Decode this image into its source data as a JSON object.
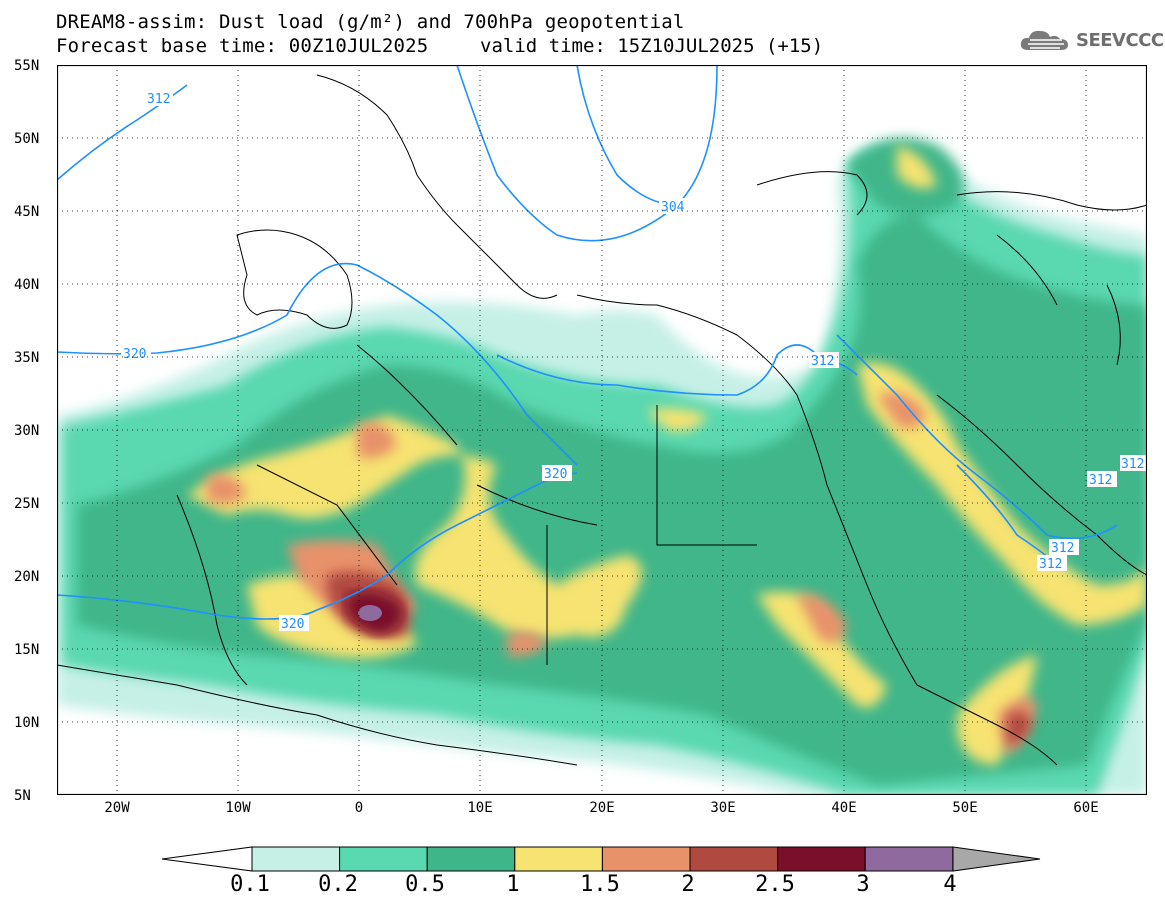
{
  "title": {
    "line1": "DREAM8-assim: Dust load (g/m²) and 700hPa geopotential",
    "line2": "Forecast base time: 00Z10JUL2025",
    "valid": "valid time: 15Z10JUL2025 (+15)"
  },
  "logo": {
    "text": "SEEVCCC",
    "icon": "cloud-logo-icon"
  },
  "axes": {
    "lat_ticks": [
      "55N",
      "50N",
      "45N",
      "40N",
      "35N",
      "30N",
      "25N",
      "20N",
      "15N",
      "10N",
      "5N"
    ],
    "lon_ticks": [
      "20W",
      "10W",
      "0",
      "10E",
      "20E",
      "30E",
      "40E",
      "50E",
      "60E"
    ],
    "lat_range": [
      5,
      55
    ],
    "lon_range": [
      -25,
      65
    ],
    "grid": "dotted"
  },
  "contours": {
    "field": "700hPa geopotential",
    "line_color": "#1e90ff",
    "labels": [
      "312",
      "320",
      "304",
      "320",
      "320",
      "312",
      "312",
      "312",
      "312",
      "312"
    ]
  },
  "colorbar": {
    "levels": [
      "0.1",
      "0.2",
      "0.5",
      "1",
      "1.5",
      "2",
      "2.5",
      "3",
      "4"
    ],
    "colors": [
      "#ffffff",
      "#c6f0e6",
      "#5ad8b0",
      "#3fb68a",
      "#f6e371",
      "#e8926a",
      "#b04a40",
      "#7a0f2a",
      "#8e6a9e",
      "#a8a8a8"
    ]
  }
}
